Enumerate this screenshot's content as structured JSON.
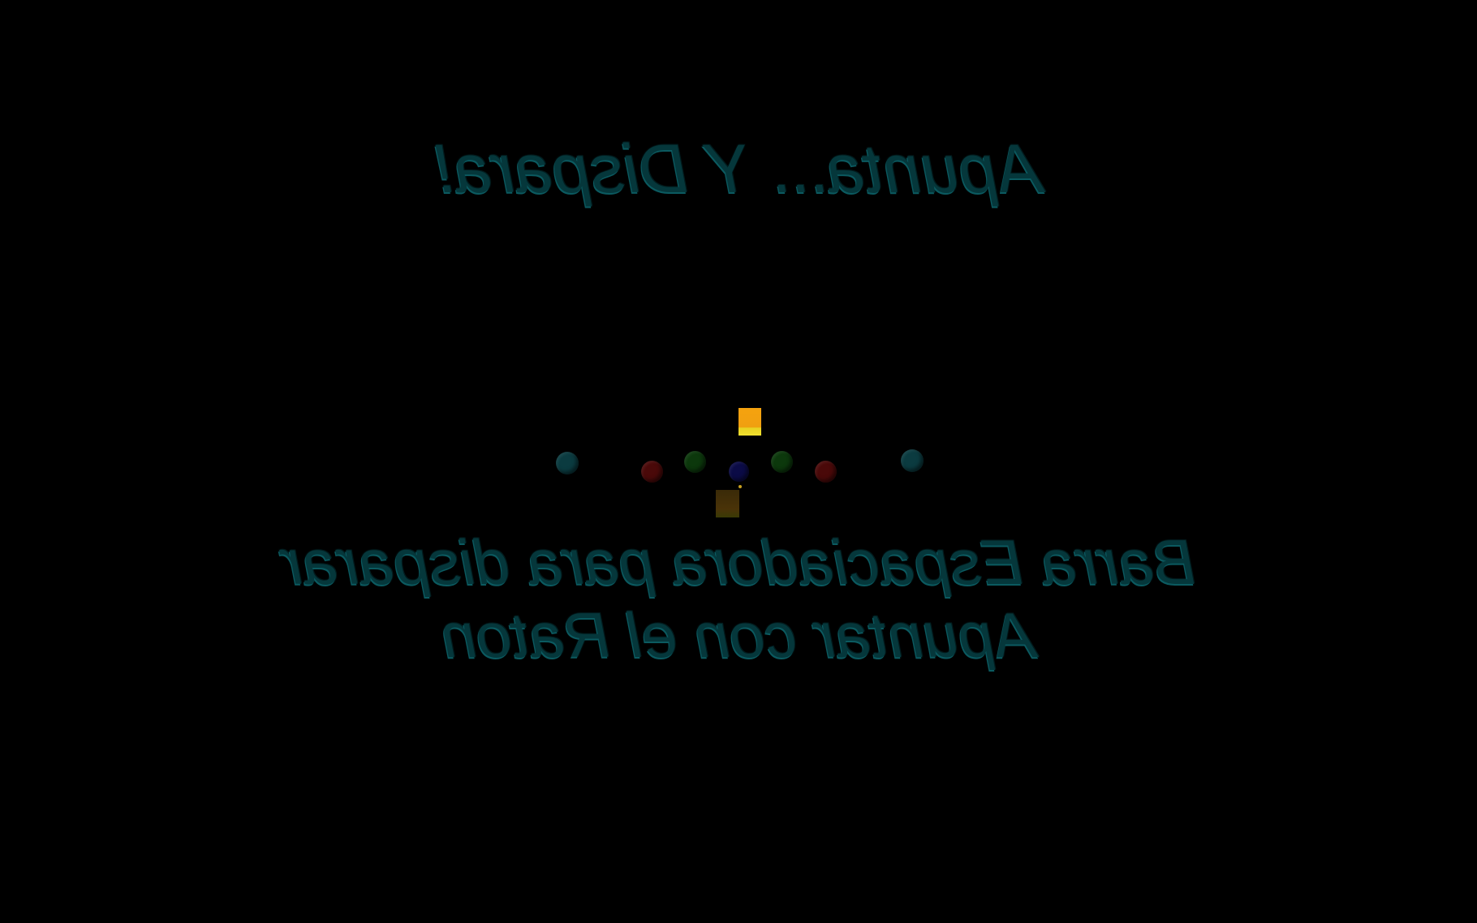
{
  "game": {
    "title": "Apunta... Y Dispara!",
    "instructions": {
      "line1": "Barra Espaciadora para disparar",
      "line2": "Apuntar con el Raton"
    },
    "mirrored_text": true,
    "colors": {
      "background": "#000000",
      "text": "#05373b",
      "target_teal": "#0a3a3f",
      "target_red": "#4a0808",
      "target_green": "#0c3a0c",
      "target_blue": "#0a0a48",
      "player_cube": "#f0a010",
      "shadow_cube": "#4a3308"
    },
    "targets": [
      {
        "name": "teal-target-left",
        "color": "teal"
      },
      {
        "name": "red-target-left",
        "color": "red"
      },
      {
        "name": "green-target-left",
        "color": "green"
      },
      {
        "name": "blue-target-center",
        "color": "blue"
      },
      {
        "name": "green-target-right",
        "color": "green"
      },
      {
        "name": "red-target-right",
        "color": "red"
      },
      {
        "name": "teal-target-right",
        "color": "teal"
      }
    ]
  }
}
